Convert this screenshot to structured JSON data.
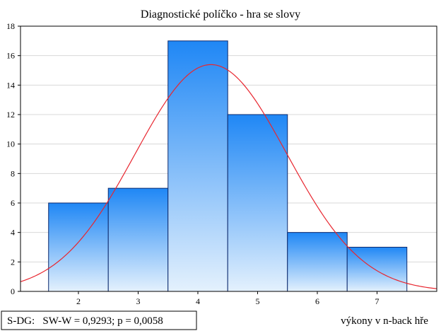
{
  "chart_data": {
    "type": "bar",
    "title": "Diagnostické políčko - hra se slovy",
    "xlabel": "výkony v n-back hře",
    "ylabel": "",
    "categories": [
      "2",
      "3",
      "4",
      "5",
      "6",
      "7"
    ],
    "values": [
      6,
      7,
      17,
      12,
      4,
      3
    ],
    "bin_edges": [
      1.5,
      2.5,
      3.5,
      4.5,
      5.5,
      6.5,
      7.5
    ],
    "xlim": [
      1.03,
      8.0
    ],
    "ylim": [
      0,
      18
    ],
    "yticks": [
      "0",
      "2",
      "4",
      "6",
      "8",
      "10",
      "12",
      "14",
      "16",
      "18"
    ],
    "xticks": [
      "2",
      "3",
      "4",
      "5",
      "6",
      "7"
    ],
    "grid": "horizontal",
    "normal_curve": {
      "mean": 4.22,
      "sd": 1.27,
      "n": 49,
      "bin_width": 1,
      "color": "#e8262f"
    },
    "colors": {
      "bar_top": "#1f87f5",
      "bar_bottom": "#e4f1fd",
      "bar_edge": "#0d2a6e",
      "grid": "#d8d8d8"
    },
    "stat_box": "S-DG:   SW-W = 0,9293; p = 0,0058"
  }
}
